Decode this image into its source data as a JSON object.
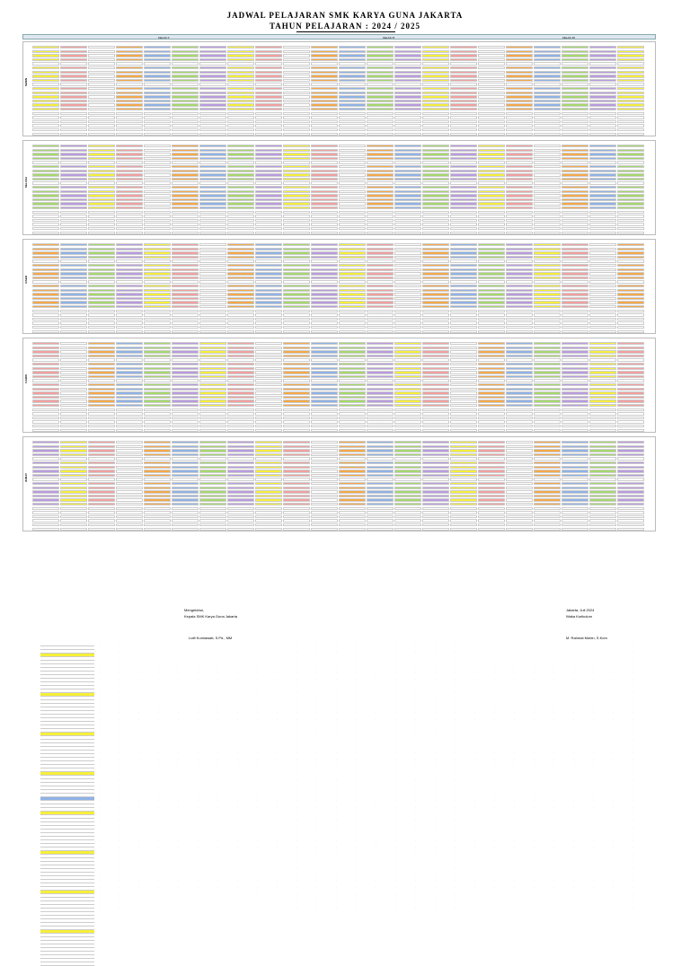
{
  "header": {
    "title": "JADWAL PELAJARAN SMK KARYA GUNA JAKARTA",
    "subtitle": "TAHUN PELAJARAN : 2024 / 2025"
  },
  "days": [
    "SENIN",
    "SELASA",
    "RABU",
    "KAMIS",
    "JUMAT"
  ],
  "legend": {
    "kelas_x": "KELAS X",
    "kelas_xi": "KELAS XI",
    "kelas_xii": "KELAS XII"
  },
  "colors": {
    "yellow": "#f6ef3a",
    "green": "#a6d86c",
    "orange": "#f5a94a",
    "pink": "#f2a0a0",
    "purple": "#b99be0",
    "blue": "#8fb2e6",
    "band": "#dfe7f2"
  },
  "footer": {
    "place_date": "Jakarta, Juli 2024",
    "role_left": "Mengetahui,",
    "role_left2": "Kepala SMK Karya Guna Jakarta",
    "role_right": "Waka Kurikulum",
    "name_left": "Lutfi Kurniawati, S.Pd., MM",
    "name_right": "M. Rahmat Mubin, S.Kom"
  }
}
